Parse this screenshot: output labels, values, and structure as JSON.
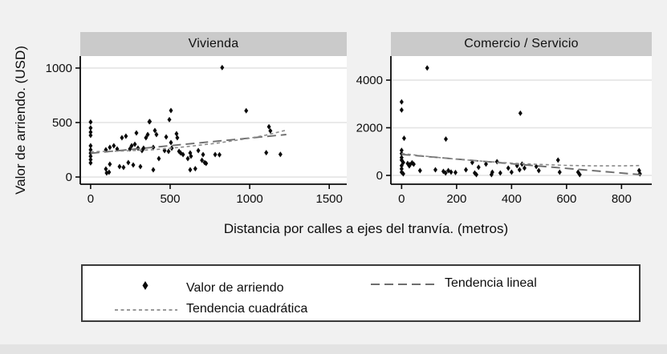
{
  "figure": {
    "ylabel": "Valor de arriendo. (USD)",
    "xlabel": "Distancia por calles a ejes del tranvía. (metros)"
  },
  "legend": {
    "items": [
      {
        "marker": "diamond",
        "label": "Valor de arriendo"
      },
      {
        "marker": "dashed-line",
        "label": "Tendencia lineal"
      },
      {
        "marker": "dotted-line",
        "label": "Tendencia cuadrática"
      }
    ]
  },
  "colors": {
    "background": "#f1f1f1",
    "panel_header_bg": "#cacaca",
    "plot_bg": "#ffffff",
    "gridline": "#e4e4e4",
    "axis": "#0a0a0a",
    "marker": "#0a0a0a",
    "trend_linear": "#6e6e6e",
    "trend_quadratic": "#8a8a8a",
    "legend_border": "#3a3a3a",
    "text": "#0d0d0d"
  },
  "chart_data": [
    {
      "type": "scatter",
      "title": "Vivienda",
      "xlabel": "Distancia por calles a ejes del tranvía. (metros)",
      "ylabel": "Valor de arriendo. (USD)",
      "x_ticks": [
        0,
        500,
        1000,
        1500
      ],
      "y_ticks": [
        0,
        500,
        1000
      ],
      "xlim": [
        -65,
        1610
      ],
      "ylim": [
        -66,
        1110
      ],
      "grid": true,
      "series": [
        {
          "name": "Valor de arriendo",
          "kind": "scatter",
          "points": [
            [
              0,
              505
            ],
            [
              0,
              450
            ],
            [
              0,
              412
            ],
            [
              0,
              382
            ],
            [
              0,
              287
            ],
            [
              0,
              250
            ],
            [
              0,
              220
            ],
            [
              0,
              190
            ],
            [
              0,
              160
            ],
            [
              0,
              130
            ],
            [
              96,
              74
            ],
            [
              101,
              37
            ],
            [
              116,
              44
            ],
            [
              121,
              118
            ],
            [
              96,
              250
            ],
            [
              121,
              272
            ],
            [
              146,
              287
            ],
            [
              167,
              257
            ],
            [
              182,
              96
            ],
            [
              207,
              88
            ],
            [
              197,
              360
            ],
            [
              222,
              375
            ],
            [
              237,
              132
            ],
            [
              247,
              257
            ],
            [
              258,
              287
            ],
            [
              268,
              110
            ],
            [
              278,
              301
            ],
            [
              288,
              404
            ],
            [
              298,
              265
            ],
            [
              313,
              96
            ],
            [
              323,
              243
            ],
            [
              333,
              265
            ],
            [
              348,
              360
            ],
            [
              359,
              390
            ],
            [
              369,
              507
            ],
            [
              372,
              509
            ],
            [
              394,
              272
            ],
            [
              394,
              66
            ],
            [
              404,
              426
            ],
            [
              414,
              390
            ],
            [
              429,
              169
            ],
            [
              465,
              243
            ],
            [
              475,
              368
            ],
            [
              490,
              235
            ],
            [
              495,
              527
            ],
            [
              505,
              610
            ],
            [
              505,
              316
            ],
            [
              510,
              265
            ],
            [
              540,
              397
            ],
            [
              545,
              360
            ],
            [
              556,
              235
            ],
            [
              566,
              221
            ],
            [
              581,
              206
            ],
            [
              611,
              169
            ],
            [
              626,
              221
            ],
            [
              626,
              66
            ],
            [
              631,
              191
            ],
            [
              658,
              76
            ],
            [
              677,
              243
            ],
            [
              700,
              154
            ],
            [
              707,
              206
            ],
            [
              717,
              132
            ],
            [
              726,
              125
            ],
            [
              783,
              206
            ],
            [
              810,
              204
            ],
            [
              827,
              1004
            ],
            [
              978,
              608
            ],
            [
              1104,
              223
            ],
            [
              1121,
              461
            ],
            [
              1130,
              424
            ],
            [
              1193,
              208
            ]
          ]
        },
        {
          "name": "Tendencia lineal",
          "kind": "line",
          "style": "long-dash",
          "points": [
            [
              0,
              218
            ],
            [
              1230,
              390
            ]
          ]
        },
        {
          "name": "Tendencia cuadrática",
          "kind": "line",
          "style": "short-dash",
          "points": [
            [
              0,
              232
            ],
            [
              200,
              239
            ],
            [
              400,
              251
            ],
            [
              600,
              278
            ],
            [
              800,
              312
            ],
            [
              1000,
              356
            ],
            [
              1100,
              384
            ],
            [
              1230,
              430
            ]
          ]
        }
      ]
    },
    {
      "type": "scatter",
      "title": "Comercio / Servicio",
      "xlabel": "Distancia por calles a ejes del tranvía. (metros)",
      "ylabel": "Valor de arriendo. (USD)",
      "x_ticks": [
        0,
        200,
        400,
        600,
        800
      ],
      "y_ticks": [
        0,
        2000,
        4000
      ],
      "xlim": [
        -39,
        910
      ],
      "ylim": [
        -370,
        5010
      ],
      "grid": true,
      "series": [
        {
          "name": "Valor de arriendo",
          "kind": "scatter",
          "points": [
            [
              0,
              3085
            ],
            [
              0,
              2746
            ],
            [
              9,
              1560
            ],
            [
              0,
              1051
            ],
            [
              0,
              915
            ],
            [
              0,
              746
            ],
            [
              0,
              644
            ],
            [
              6,
              542
            ],
            [
              0,
              407
            ],
            [
              0,
              271
            ],
            [
              0,
              136
            ],
            [
              6,
              68
            ],
            [
              22,
              500
            ],
            [
              30,
              450
            ],
            [
              38,
              530
            ],
            [
              44,
              470
            ],
            [
              28,
              400
            ],
            [
              67,
              203
            ],
            [
              93,
              4510
            ],
            [
              123,
              237
            ],
            [
              152,
              170
            ],
            [
              160,
              100
            ],
            [
              170,
              203
            ],
            [
              180,
              140
            ],
            [
              196,
              120
            ],
            [
              161,
              1525
            ],
            [
              234,
              237
            ],
            [
              257,
              542
            ],
            [
              266,
              102
            ],
            [
              272,
              34
            ],
            [
              280,
              339
            ],
            [
              307,
              475
            ],
            [
              327,
              34
            ],
            [
              330,
              136
            ],
            [
              347,
              576
            ],
            [
              359,
              102
            ],
            [
              388,
              305
            ],
            [
              400,
              136
            ],
            [
              420,
              407
            ],
            [
              429,
              237
            ],
            [
              432,
              2610
            ],
            [
              438,
              475
            ],
            [
              447,
              305
            ],
            [
              490,
              373
            ],
            [
              499,
              203
            ],
            [
              569,
              644
            ],
            [
              575,
              136
            ],
            [
              642,
              136
            ],
            [
              648,
              34
            ],
            [
              864,
              203
            ],
            [
              867,
              68
            ]
          ]
        },
        {
          "name": "Tendencia lineal",
          "kind": "line",
          "style": "long-dash",
          "points": [
            [
              0,
              880
            ],
            [
              870,
              30
            ]
          ]
        },
        {
          "name": "Tendencia cuadrática",
          "kind": "line",
          "style": "short-dash",
          "points": [
            [
              0,
              920
            ],
            [
              100,
              790
            ],
            [
              200,
              680
            ],
            [
              300,
              590
            ],
            [
              400,
              515
            ],
            [
              500,
              460
            ],
            [
              600,
              420
            ],
            [
              700,
              400
            ],
            [
              800,
              400
            ],
            [
              870,
              415
            ]
          ]
        }
      ]
    }
  ]
}
